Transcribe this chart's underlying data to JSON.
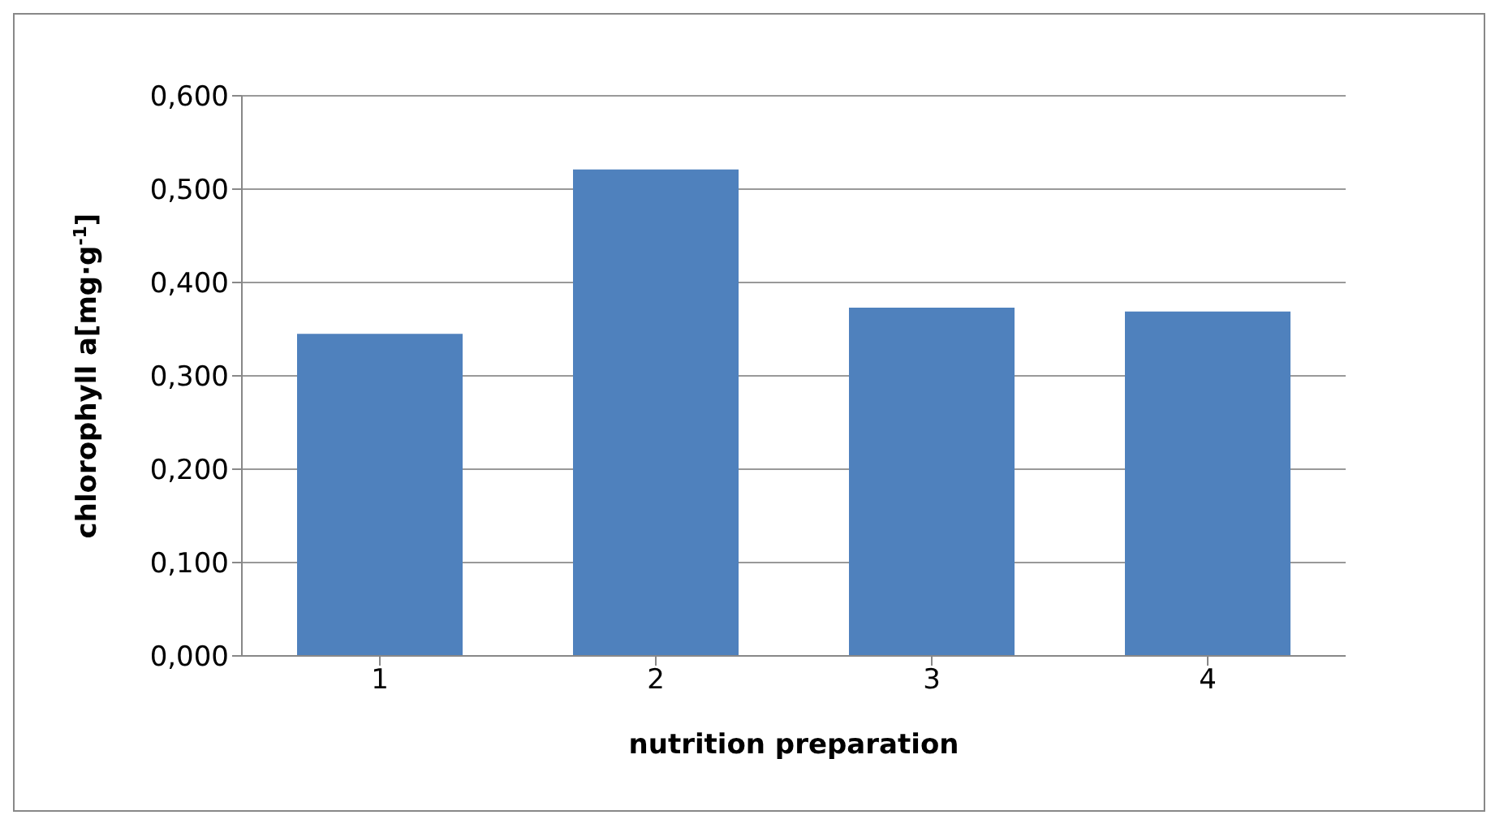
{
  "chart_data": {
    "type": "bar",
    "xlabel": "nutrition preparation",
    "ylabel": "chlorophyll a[mg·g$^{-1}$]",
    "categories": [
      "1",
      "2",
      "3",
      "4"
    ],
    "values": [
      0.345,
      0.521,
      0.373,
      0.369
    ],
    "color": "#4f81bd",
    "ylim": [
      0,
      0.6
    ],
    "yticks": [
      {
        "value": 0,
        "label": "0,000"
      },
      {
        "value": 0.1,
        "label": "0,100"
      },
      {
        "value": 0.2,
        "label": "0,200"
      },
      {
        "value": 0.3,
        "label": "0,300"
      },
      {
        "value": 0.4,
        "label": "0,400"
      },
      {
        "value": 0.5,
        "label": "0,500"
      },
      {
        "value": 0.6,
        "label": "0,600"
      }
    ],
    "grid": "y",
    "legend": false
  }
}
